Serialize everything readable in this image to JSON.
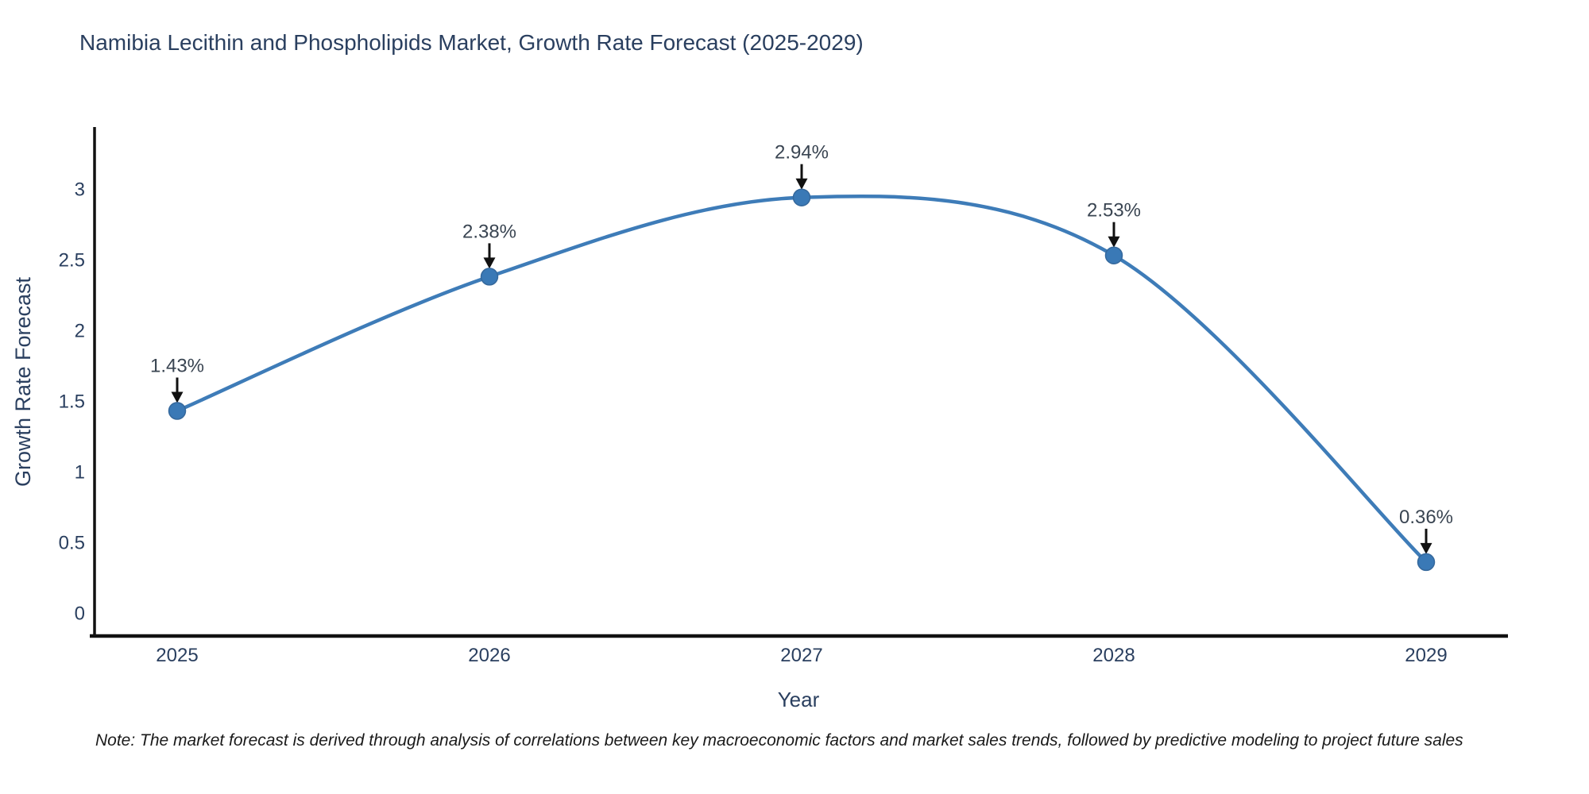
{
  "title": "Namibia Lecithin and Phospholipids Market, Growth Rate Forecast (2025-2029)",
  "note": "Note: The market forecast is derived through analysis of correlations between key macroeconomic factors and market sales trends, followed by predictive modeling to project future sales",
  "chart_data": {
    "type": "line",
    "line_shape": "spline",
    "title": "Namibia Lecithin and Phospholipids Market, Growth Rate Forecast (2025-2029)",
    "xlabel": "Year",
    "ylabel": "Growth Rate Forecast",
    "categories": [
      "2025",
      "2026",
      "2027",
      "2028",
      "2029"
    ],
    "values": [
      1.43,
      2.38,
      2.94,
      2.53,
      0.36
    ],
    "point_labels": [
      "1.43%",
      "2.38%",
      "2.94%",
      "2.53%",
      "0.36%"
    ],
    "y_ticks": [
      0,
      0.5,
      1,
      1.5,
      2,
      2.5,
      3
    ],
    "ylim": [
      -0.17,
      3.43
    ],
    "grid": false,
    "legend": "none",
    "annotation_style": "label-with-down-arrow",
    "colors": {
      "line": "#3e7cb8",
      "marker": "#3a79b6",
      "axis": "#111111",
      "text": "#2a3f5f",
      "annotation_text": "#3a4552",
      "arrow": "#111111",
      "background": "#ffffff"
    }
  }
}
